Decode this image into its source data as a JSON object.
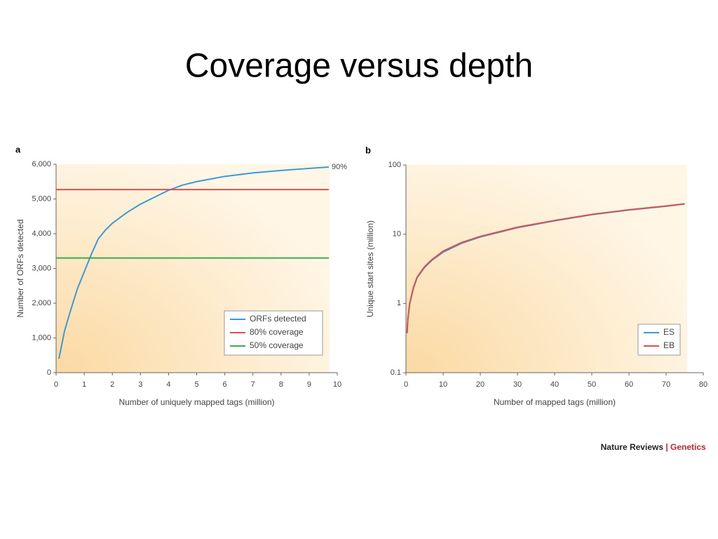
{
  "slide_title": "Coverage versus depth",
  "credit": {
    "publisher": "Nature Reviews",
    "separator": "|",
    "journal": "Genetics"
  },
  "chart_data": [
    {
      "type": "line",
      "panel": "a",
      "annotation": "90%",
      "xlabel": "Number of uniquely mapped tags (million)",
      "ylabel": "Number of ORFs detected",
      "xlim": [
        0,
        10
      ],
      "xticks": [
        0,
        1,
        2,
        3,
        4,
        5,
        6,
        7,
        8,
        9,
        10
      ],
      "ylim": [
        0,
        6000
      ],
      "yticks": [
        0,
        {
          "value": 1000,
          "label": "1,000"
        },
        {
          "value": 2000,
          "label": "2,000"
        },
        {
          "value": 3000,
          "label": "3,000"
        },
        {
          "value": 4000,
          "label": "4,000"
        },
        {
          "value": 5000,
          "label": "5,000"
        },
        {
          "value": 6000,
          "label": "6,000"
        }
      ],
      "log_y": false,
      "legend": "lower right",
      "series": [
        {
          "name": "ORFs detected",
          "color": "#3a9ad9",
          "x": [
            0.1,
            0.3,
            0.5,
            0.75,
            1,
            1.25,
            1.5,
            1.75,
            2,
            2.5,
            3,
            3.5,
            4,
            4.5,
            5,
            6,
            7,
            8,
            9,
            9.7
          ],
          "values": [
            400,
            1200,
            1750,
            2400,
            2900,
            3400,
            3850,
            4100,
            4300,
            4600,
            4850,
            5050,
            5250,
            5400,
            5500,
            5650,
            5750,
            5820,
            5880,
            5920
          ]
        },
        {
          "name": "80% coverage",
          "color": "#d9534f",
          "x": [
            0,
            9.7
          ],
          "values": [
            5270,
            5270
          ]
        },
        {
          "name": "50% coverage",
          "color": "#3aaa50",
          "x": [
            0,
            9.7
          ],
          "values": [
            3300,
            3300
          ]
        }
      ]
    },
    {
      "type": "line",
      "panel": "b",
      "xlabel": "Number of mapped tags (million)",
      "ylabel": "Unique start sites (million)",
      "xlim": [
        0,
        80
      ],
      "xticks": [
        0,
        10,
        20,
        30,
        40,
        50,
        60,
        70,
        80
      ],
      "ylim": [
        0.1,
        100
      ],
      "yticks": [
        0.1,
        1,
        10,
        100
      ],
      "log_y": true,
      "legend": "lower right",
      "series": [
        {
          "name": "ES",
          "color": "#3a9ad9",
          "x": [
            0.3,
            0.5,
            1,
            2,
            3,
            5,
            7,
            10,
            15,
            20,
            30,
            40,
            50,
            60,
            70,
            75
          ],
          "values": [
            0.37,
            0.58,
            0.98,
            1.65,
            2.35,
            3.3,
            4.2,
            5.5,
            7.4,
            9.1,
            12.4,
            15.6,
            19.1,
            22.3,
            25.3,
            27.3
          ]
        },
        {
          "name": "EB",
          "color": "#d9534f",
          "x": [
            0.3,
            0.5,
            1,
            2,
            3,
            5,
            7,
            10,
            15,
            20,
            30,
            40,
            50,
            60,
            70,
            75
          ],
          "values": [
            0.38,
            0.6,
            1.0,
            1.7,
            2.4,
            3.4,
            4.3,
            5.7,
            7.6,
            9.3,
            12.6,
            15.8,
            19.3,
            22.5,
            25.5,
            27.5
          ]
        }
      ]
    }
  ]
}
